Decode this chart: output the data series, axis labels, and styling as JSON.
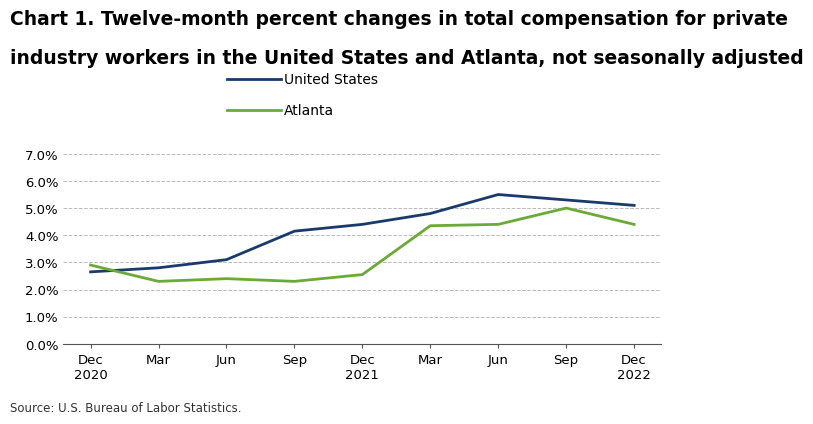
{
  "title_line1": "Chart 1. Twelve-month percent changes in total compensation for private",
  "title_line2": "industry workers in the United States and Atlanta, not seasonally adjusted",
  "source": "Source: U.S. Bureau of Labor Statistics.",
  "x_labels": [
    "Dec\n2020",
    "Mar",
    "Jun",
    "Sep",
    "Dec\n2021",
    "Mar",
    "Jun",
    "Sep",
    "Dec\n2022"
  ],
  "us_values": [
    2.65,
    2.8,
    3.1,
    4.15,
    4.4,
    4.8,
    5.5,
    5.3,
    5.1
  ],
  "atlanta_values": [
    2.9,
    2.3,
    2.4,
    2.3,
    2.55,
    4.35,
    4.4,
    5.0,
    4.4
  ],
  "us_color": "#1a3a6b",
  "atlanta_color": "#6aaa35",
  "ylim": [
    0.0,
    7.0
  ],
  "yticks": [
    0.0,
    1.0,
    2.0,
    3.0,
    4.0,
    5.0,
    6.0,
    7.0
  ],
  "legend_labels": [
    "United States",
    "Atlanta"
  ],
  "line_width": 2.0,
  "background_color": "#ffffff",
  "grid_color": "#aaaaaa",
  "title_fontsize": 13.5,
  "tick_fontsize": 9.5,
  "legend_fontsize": 10,
  "source_fontsize": 8.5
}
